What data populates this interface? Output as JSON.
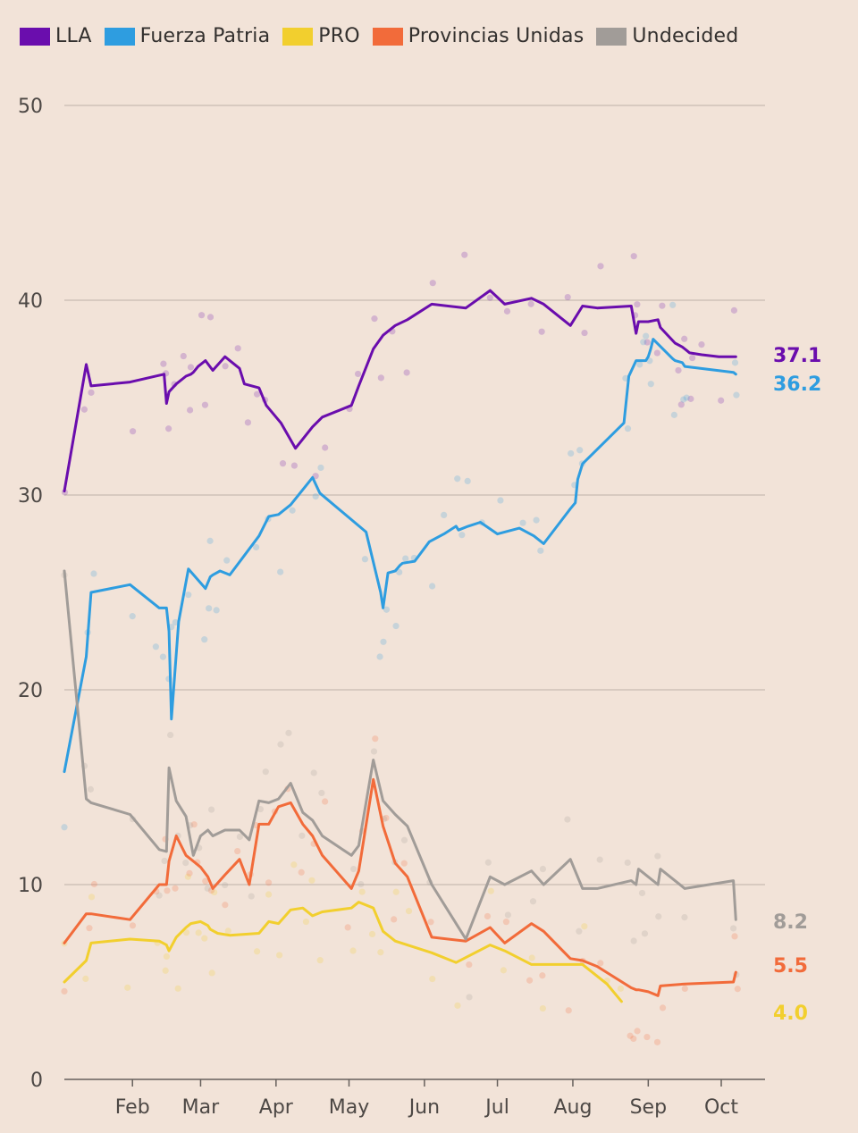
{
  "chart_data": {
    "type": "line",
    "title": "",
    "xlabel": "",
    "ylabel": "",
    "ylim": [
      0,
      50
    ],
    "yticks": [
      0,
      10,
      20,
      30,
      40,
      50
    ],
    "xticks": [
      "Feb",
      "Mar",
      "Apr",
      "May",
      "Jun",
      "Jul",
      "Aug",
      "Sep",
      "Oct"
    ],
    "xlim_days": [
      0,
      288
    ],
    "x_unit": "days since start of the time axis (first date not printed; axis starts early January)",
    "grid": true,
    "legend_position": "top-left",
    "series": [
      {
        "name": "LLA",
        "color": "#6a0dad",
        "end_label": "37.1",
        "x": [
          0,
          9,
          11,
          27,
          41,
          42,
          43,
          46,
          50,
          52,
          53,
          55,
          58,
          61,
          66,
          72,
          74,
          80,
          83,
          89,
          95,
          102,
          106,
          118,
          121,
          127,
          131,
          136,
          141,
          151,
          165,
          175,
          181,
          192,
          197,
          208,
          213,
          219,
          233,
          235,
          236,
          240,
          244,
          245,
          251,
          254,
          255,
          256,
          257,
          262,
          269,
          276
        ],
        "y": [
          30.2,
          36.7,
          35.6,
          35.8,
          36.2,
          34.7,
          35.3,
          35.7,
          36.1,
          36.2,
          36.3,
          36.6,
          36.9,
          36.4,
          37.1,
          36.5,
          35.7,
          35.5,
          34.6,
          33.7,
          32.4,
          33.5,
          34.0,
          34.6,
          35.6,
          37.5,
          38.2,
          38.7,
          39.0,
          39.8,
          39.6,
          40.5,
          39.8,
          40.1,
          39.8,
          38.7,
          39.7,
          39.6,
          39.7,
          38.3,
          38.9,
          38.9,
          39.0,
          38.6,
          37.8,
          37.6,
          37.5,
          37.4,
          37.3,
          37.2,
          37.1,
          37.1
        ]
      },
      {
        "name": "Fuerza Patria",
        "color": "#2e9de0",
        "end_label": "36.2",
        "x": [
          0,
          9,
          11,
          27,
          39,
          42,
          43,
          44,
          47,
          51,
          58,
          60,
          61,
          64,
          68,
          80,
          84,
          88,
          93,
          102,
          105,
          124,
          130,
          131,
          133,
          136,
          138,
          139,
          144,
          150,
          156,
          161,
          162,
          166,
          171,
          178,
          187,
          193,
          197,
          208,
          210,
          211,
          213,
          230,
          232,
          235,
          239,
          240,
          241,
          242,
          250,
          251,
          254,
          255,
          275,
          276
        ],
        "y": [
          15.8,
          21.7,
          25.0,
          25.4,
          24.2,
          24.2,
          23.0,
          18.5,
          23.5,
          26.2,
          25.2,
          25.8,
          25.9,
          26.1,
          25.9,
          27.9,
          28.9,
          29.0,
          29.5,
          30.9,
          30.1,
          28.1,
          25.0,
          24.2,
          26.0,
          26.1,
          26.4,
          26.5,
          26.6,
          27.6,
          28.0,
          28.4,
          28.2,
          28.4,
          28.6,
          28.0,
          28.3,
          27.9,
          27.5,
          29.3,
          29.6,
          30.8,
          31.6,
          33.7,
          36.1,
          36.9,
          36.9,
          37.1,
          37.5,
          38.0,
          37.0,
          36.9,
          36.8,
          36.6,
          36.3,
          36.2
        ]
      },
      {
        "name": "PRO",
        "color": "#f2cf2e",
        "end_label": "4.0",
        "x": [
          0,
          9,
          11,
          27,
          39,
          42,
          43,
          46,
          50,
          52,
          56,
          59,
          60,
          63,
          68,
          80,
          84,
          88,
          93,
          98,
          102,
          106,
          118,
          121,
          127,
          131,
          136,
          141,
          151,
          161,
          175,
          181,
          192,
          197,
          213,
          223,
          229
        ],
        "y": [
          5.0,
          6.1,
          7.0,
          7.2,
          7.1,
          6.9,
          6.6,
          7.3,
          7.8,
          8.0,
          8.1,
          7.9,
          7.7,
          7.5,
          7.4,
          7.5,
          8.1,
          8.0,
          8.7,
          8.8,
          8.4,
          8.6,
          8.8,
          9.1,
          8.8,
          7.6,
          7.1,
          6.9,
          6.5,
          6.0,
          6.9,
          6.6,
          5.9,
          5.9,
          5.9,
          4.9,
          4.0
        ]
      },
      {
        "name": "Provincias Unidas",
        "color": "#f26b3a",
        "end_label": "5.5",
        "x": [
          0,
          9,
          11,
          27,
          39,
          42,
          43,
          46,
          50,
          53,
          56,
          59,
          61,
          66,
          72,
          76,
          80,
          84,
          88,
          93,
          98,
          102,
          106,
          118,
          121,
          127,
          131,
          136,
          141,
          151,
          165,
          175,
          181,
          192,
          197,
          208,
          213,
          219,
          233,
          235,
          236,
          240,
          244,
          245,
          255,
          275,
          276
        ],
        "y": [
          7.0,
          8.5,
          8.5,
          8.2,
          10.0,
          10.0,
          11.2,
          12.5,
          11.5,
          11.2,
          10.9,
          10.4,
          9.8,
          10.5,
          11.3,
          10.0,
          13.1,
          13.1,
          14.0,
          14.2,
          13.1,
          12.5,
          11.5,
          9.8,
          10.7,
          15.4,
          13.0,
          11.1,
          10.4,
          7.3,
          7.1,
          7.8,
          7.0,
          8.0,
          7.6,
          6.2,
          6.1,
          5.8,
          4.7,
          4.6,
          4.6,
          4.5,
          4.3,
          4.8,
          4.9,
          5.0,
          5.5
        ]
      },
      {
        "name": "Undecided",
        "color": "#a19c98",
        "end_label": "8.2",
        "x": [
          0,
          9,
          11,
          27,
          39,
          42,
          43,
          46,
          50,
          53,
          56,
          59,
          61,
          66,
          72,
          76,
          80,
          84,
          88,
          93,
          98,
          102,
          106,
          118,
          121,
          127,
          131,
          136,
          141,
          151,
          165,
          175,
          181,
          192,
          197,
          208,
          213,
          219,
          233,
          235,
          236,
          240,
          244,
          245,
          255,
          275,
          276
        ],
        "y": [
          26.1,
          14.4,
          14.2,
          13.6,
          11.8,
          11.7,
          16.0,
          14.3,
          13.5,
          11.5,
          12.5,
          12.8,
          12.5,
          12.8,
          12.8,
          12.3,
          14.3,
          14.2,
          14.4,
          15.2,
          13.7,
          13.3,
          12.5,
          11.5,
          12.0,
          16.4,
          14.3,
          13.6,
          13.0,
          10.0,
          7.2,
          10.4,
          10.0,
          10.7,
          10.0,
          11.3,
          9.8,
          9.8,
          10.2,
          10.0,
          10.8,
          10.4,
          10.0,
          10.8,
          9.8,
          10.2,
          8.2
        ]
      }
    ],
    "individual_polls_shown": true
  }
}
